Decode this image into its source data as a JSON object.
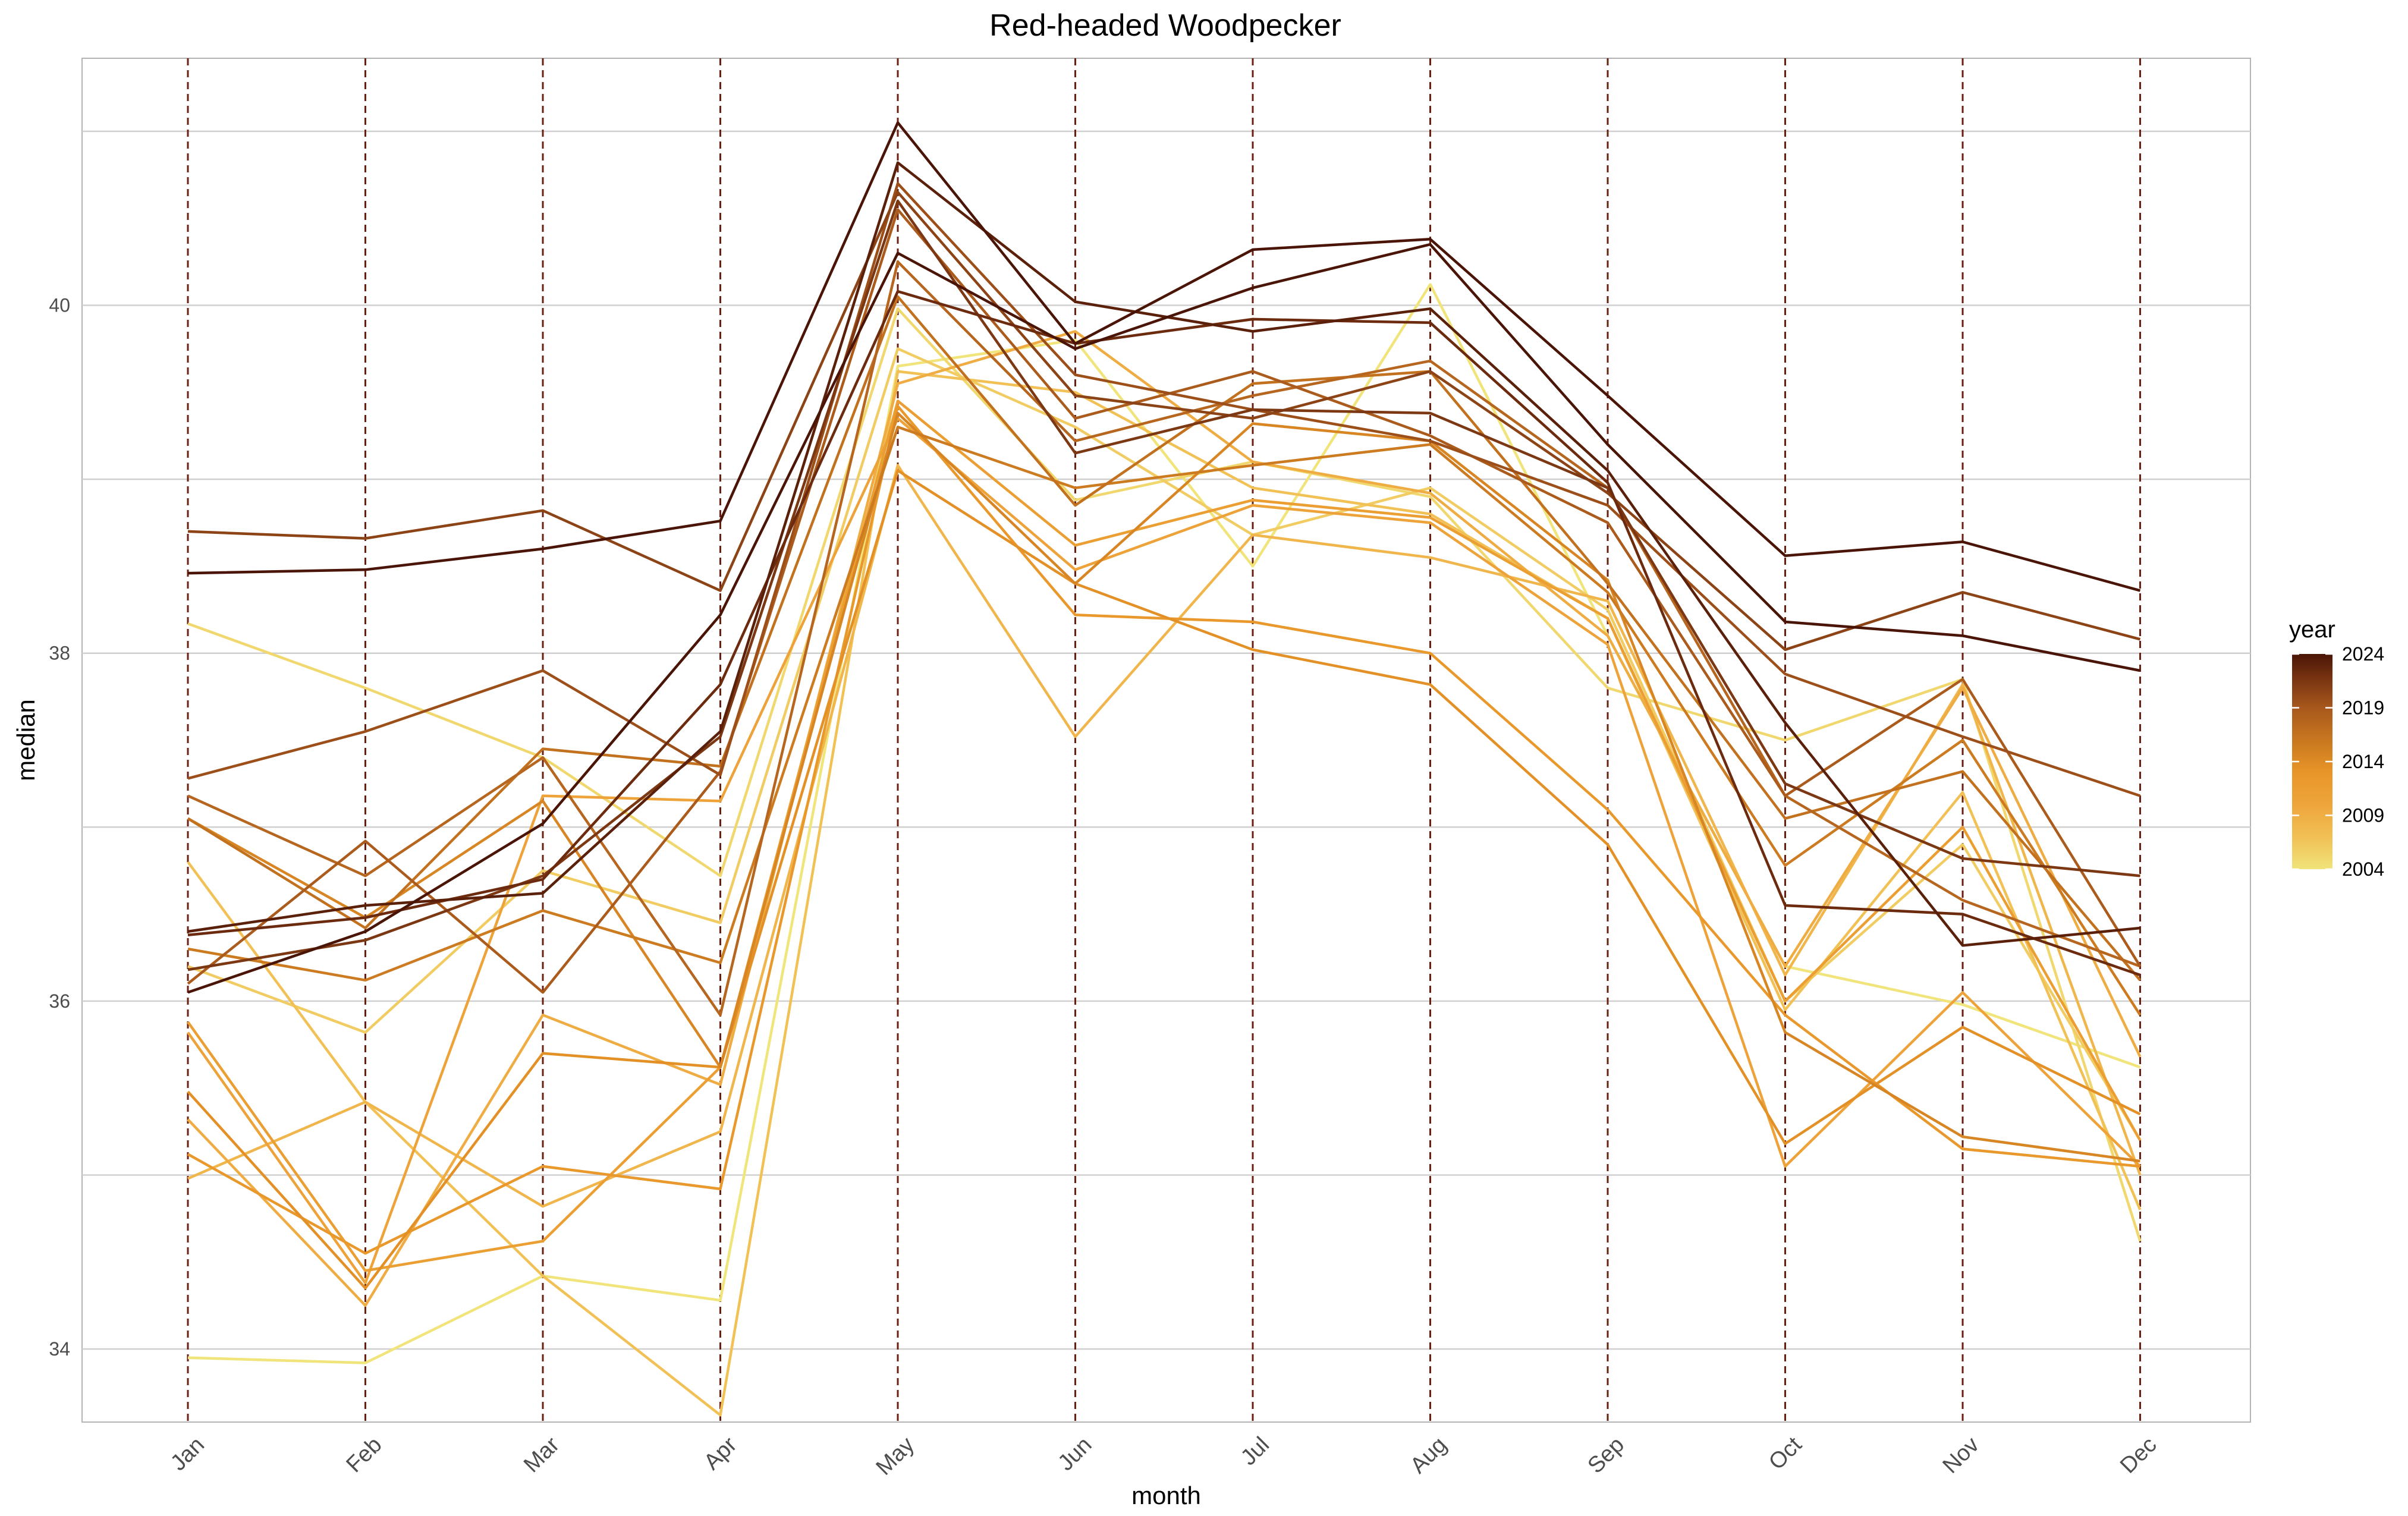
{
  "chart_data": {
    "type": "line",
    "title": "Red-headed Woodpecker",
    "xlabel": "month",
    "ylabel": "median",
    "categories": [
      "Jan",
      "Feb",
      "Mar",
      "Apr",
      "May",
      "Jun",
      "Jul",
      "Aug",
      "Sep",
      "Oct",
      "Nov",
      "Dec"
    ],
    "ylim": [
      33.58,
      41.42
    ],
    "yticks": [
      34,
      36,
      38,
      40
    ],
    "grid": true,
    "vlines_at_months": true,
    "vline_color": "#6b1f10",
    "legend": {
      "title": "year",
      "placement": "right",
      "range": [
        2004,
        2024
      ],
      "ticks": [
        2004,
        2009,
        2014,
        2019,
        2024
      ],
      "colors": [
        "#f0e47a",
        "#f1c257",
        "#eea53b",
        "#e89528",
        "#c87720",
        "#a8581c",
        "#7a3512",
        "#4a1506"
      ]
    },
    "series": [
      {
        "year": 2004,
        "values": [
          33.95,
          33.92,
          34.42,
          34.28,
          39.65,
          39.8,
          38.5,
          40.12,
          38.1,
          36.2,
          35.98,
          35.62
        ]
      },
      {
        "year": 2005,
        "values": [
          38.17,
          37.8,
          37.4,
          36.72,
          39.98,
          38.88,
          39.1,
          38.9,
          37.8,
          37.5,
          37.85,
          34.62
        ]
      },
      {
        "year": 2006,
        "values": [
          36.2,
          35.82,
          36.75,
          36.45,
          39.75,
          39.3,
          38.68,
          38.95,
          38.25,
          36.0,
          36.9,
          35.2
        ]
      },
      {
        "year": 2007,
        "values": [
          36.8,
          35.42,
          34.42,
          33.62,
          39.62,
          39.5,
          38.95,
          38.8,
          38.2,
          35.95,
          37.2,
          34.8
        ]
      },
      {
        "year": 2008,
        "values": [
          34.98,
          35.42,
          34.82,
          35.25,
          39.08,
          37.52,
          38.68,
          38.55,
          38.3,
          36.15,
          37.82,
          35.0
        ]
      },
      {
        "year": 2009,
        "values": [
          35.32,
          34.25,
          35.92,
          35.52,
          39.55,
          39.85,
          39.1,
          38.92,
          38.1,
          36.2,
          37.8,
          35.68
        ]
      },
      {
        "year": 2010,
        "values": [
          35.82,
          34.38,
          37.18,
          37.15,
          39.35,
          38.48,
          38.85,
          38.75,
          38.05,
          35.05,
          36.05,
          35.05
        ]
      },
      {
        "year": 2011,
        "values": [
          35.88,
          34.45,
          34.62,
          35.62,
          39.45,
          38.62,
          38.88,
          38.78,
          38.2,
          36.0,
          37.0,
          35.2
        ]
      },
      {
        "year": 2012,
        "values": [
          35.12,
          34.55,
          35.05,
          34.92,
          39.42,
          38.22,
          38.18,
          38.0,
          37.1,
          35.92,
          35.15,
          35.05
        ]
      },
      {
        "year": 2013,
        "values": [
          35.48,
          34.35,
          35.7,
          35.62,
          39.05,
          38.4,
          38.02,
          37.82,
          36.9,
          35.18,
          35.85,
          35.35
        ]
      },
      {
        "year": 2014,
        "values": [
          37.05,
          36.48,
          37.15,
          35.62,
          39.38,
          38.4,
          39.32,
          39.22,
          38.42,
          35.82,
          35.22,
          35.08
        ]
      },
      {
        "year": 2015,
        "values": [
          36.3,
          36.12,
          36.52,
          36.22,
          39.3,
          38.95,
          39.08,
          39.2,
          38.35,
          36.78,
          37.5,
          35.92
        ]
      },
      {
        "year": 2016,
        "values": [
          37.05,
          36.42,
          37.45,
          37.35,
          40.05,
          38.85,
          39.55,
          39.62,
          38.4,
          37.05,
          37.32,
          36.12
        ]
      },
      {
        "year": 2017,
        "values": [
          37.18,
          36.72,
          37.4,
          35.92,
          40.25,
          39.22,
          39.48,
          39.68,
          38.95,
          37.18,
          36.58,
          36.2
        ]
      },
      {
        "year": 2018,
        "values": [
          36.1,
          36.92,
          36.05,
          37.32,
          40.55,
          39.35,
          39.62,
          39.25,
          38.75,
          37.18,
          37.85,
          36.2
        ]
      },
      {
        "year": 2019,
        "values": [
          37.28,
          37.55,
          37.9,
          37.3,
          40.7,
          39.6,
          39.4,
          39.22,
          38.85,
          37.88,
          37.52,
          37.18
        ]
      },
      {
        "year": 2020,
        "values": [
          38.7,
          38.66,
          38.82,
          38.36,
          40.65,
          39.48,
          39.35,
          39.62,
          38.92,
          38.02,
          38.35,
          38.08
        ]
      },
      {
        "year": 2021,
        "values": [
          36.18,
          36.35,
          36.72,
          37.52,
          40.6,
          39.15,
          39.4,
          39.38,
          38.95,
          37.25,
          36.82,
          36.72
        ]
      },
      {
        "year": 2022,
        "values": [
          36.38,
          36.48,
          36.7,
          37.82,
          40.08,
          39.78,
          39.92,
          39.9,
          38.98,
          36.55,
          36.5,
          36.15
        ]
      },
      {
        "year": 2023,
        "values": [
          36.4,
          36.55,
          36.62,
          37.55,
          40.82,
          40.02,
          39.85,
          39.98,
          39.05,
          37.6,
          36.32,
          36.42
        ]
      },
      {
        "year": 2024,
        "values": [
          38.46,
          38.48,
          38.6,
          38.76,
          41.05,
          39.78,
          40.32,
          40.38,
          39.48,
          38.56,
          38.64,
          38.36
        ]
      },
      {
        "year": 2024,
        "values": [
          36.05,
          36.4,
          37.02,
          38.22,
          40.3,
          39.75,
          40.1,
          40.35,
          39.2,
          38.18,
          38.1,
          37.9
        ]
      }
    ]
  }
}
